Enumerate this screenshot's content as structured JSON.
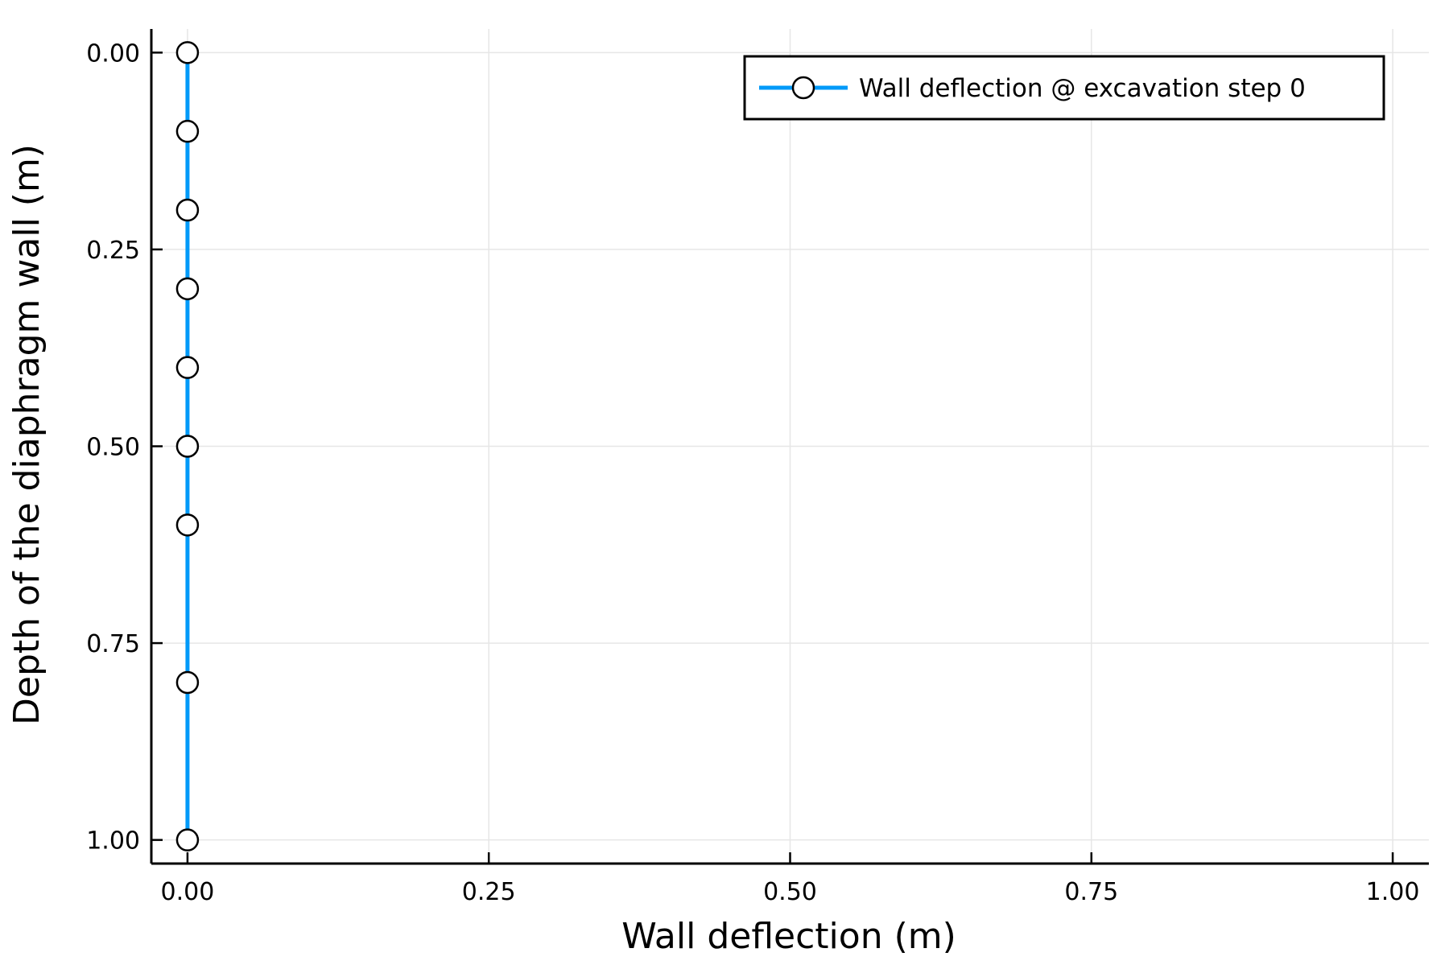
{
  "chart_data": {
    "type": "line",
    "title": "",
    "xlabel": "Wall deflection (m)",
    "ylabel": "Depth of the diaphragm wall (m)",
    "xlim": [
      -0.03,
      1.03
    ],
    "ylim": [
      1.03,
      -0.03
    ],
    "y_axis_inverted": true,
    "grid": true,
    "legend_position": "top-right",
    "x_ticks": [
      {
        "value": 0.0,
        "label": "0.00"
      },
      {
        "value": 0.25,
        "label": "0.25"
      },
      {
        "value": 0.5,
        "label": "0.50"
      },
      {
        "value": 0.75,
        "label": "0.75"
      },
      {
        "value": 1.0,
        "label": "1.00"
      }
    ],
    "y_ticks": [
      {
        "value": 0.0,
        "label": "0.00"
      },
      {
        "value": 0.25,
        "label": "0.25"
      },
      {
        "value": 0.5,
        "label": "0.50"
      },
      {
        "value": 0.75,
        "label": "0.75"
      },
      {
        "value": 1.0,
        "label": "1.00"
      }
    ],
    "series": [
      {
        "name": "Wall deflection @ excavation step 0",
        "color": "#009af9",
        "marker": "circle",
        "marker_fill": "#ffffff",
        "marker_stroke": "#000000",
        "x": [
          0,
          0,
          0,
          0,
          0,
          0,
          0,
          0,
          0
        ],
        "y": [
          0.0,
          0.1,
          0.2,
          0.3,
          0.4,
          0.5,
          0.6,
          0.8,
          1.0
        ]
      }
    ]
  }
}
